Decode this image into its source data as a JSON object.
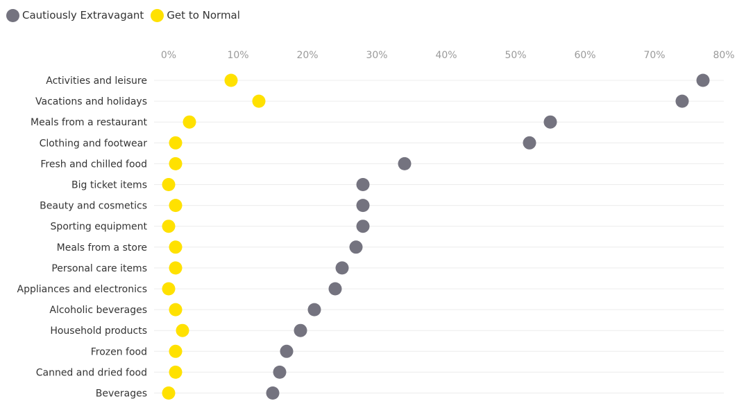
{
  "legend": [
    {
      "label": "Cautiously Extravagant",
      "color": "#74737f"
    },
    {
      "label": "Get to Normal",
      "color": "#ffe100"
    }
  ],
  "chart_data": {
    "type": "scatter",
    "orientation": "horizontal-dot-plot",
    "categories": [
      "Activities and leisure",
      "Vacations and holidays",
      "Meals from a restaurant",
      "Clothing and footwear",
      "Fresh and chilled food",
      "Big ticket items",
      "Beauty and cosmetics",
      "Sporting equipment",
      "Meals from a store",
      "Personal care items",
      "Appliances and electronics",
      "Alcoholic beverages",
      "Household products",
      "Frozen food",
      "Canned and dried food",
      "Beverages"
    ],
    "series": [
      {
        "name": "Cautiously Extravagant",
        "color": "#74737f",
        "values": [
          77,
          74,
          55,
          52,
          34,
          28,
          28,
          28,
          27,
          25,
          24,
          21,
          19,
          17,
          16,
          15
        ]
      },
      {
        "name": "Get to Normal",
        "color": "#ffe100",
        "values": [
          9,
          13,
          3,
          1,
          1,
          0,
          1,
          0,
          1,
          1,
          0,
          1,
          2,
          1,
          1,
          0
        ]
      }
    ],
    "xlim": [
      0,
      80
    ],
    "xticks": [
      0,
      10,
      20,
      30,
      40,
      50,
      60,
      70,
      80
    ],
    "xtick_labels": [
      "0%",
      "10%",
      "20%",
      "30%",
      "40%",
      "50%",
      "60%",
      "70%",
      "80%"
    ],
    "axis_position": "top",
    "grid": true,
    "legend_position": "top-left",
    "title": "",
    "xlabel": "",
    "ylabel": ""
  }
}
